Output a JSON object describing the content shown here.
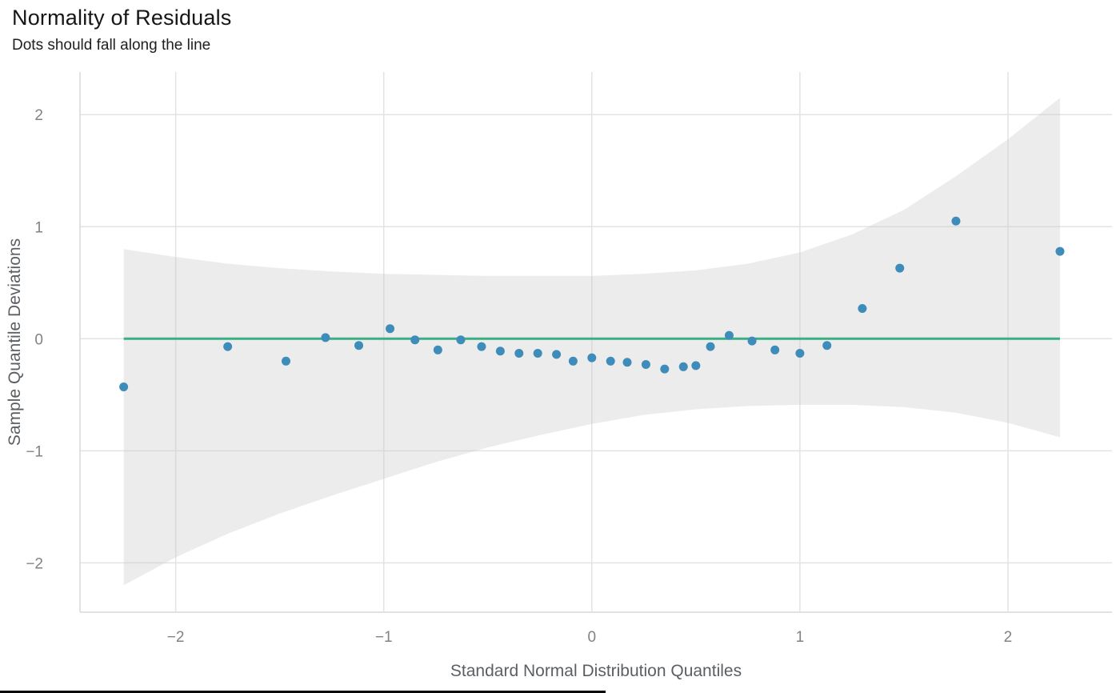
{
  "figure": {
    "title": "Normality of Residuals",
    "subtitle": "Dots should fall along the line"
  },
  "chart_data": {
    "type": "scatter",
    "title": "Normality of Residuals",
    "subtitle": "Dots should fall along the line",
    "xlabel": "Standard Normal Distribution Quantiles",
    "ylabel": "Sample Quantile Deviations",
    "xlim": [
      -2.46,
      2.5
    ],
    "ylim": [
      -2.44,
      2.38
    ],
    "xticks": [
      -2,
      -1,
      0,
      1,
      2
    ],
    "yticks": [
      -2,
      -1,
      0,
      1,
      2
    ],
    "grid": true,
    "legend": "none",
    "series": [
      {
        "name": "sample-quantile-deviations",
        "type": "scatter",
        "color": "#3d8cba",
        "x": [
          -2.25,
          -1.75,
          -1.47,
          -1.28,
          -1.12,
          -0.97,
          -0.85,
          -0.74,
          -0.63,
          -0.53,
          -0.44,
          -0.35,
          -0.26,
          -0.17,
          -0.09,
          0.0,
          0.09,
          0.17,
          0.26,
          0.35,
          0.44,
          0.5,
          0.57,
          0.66,
          0.77,
          0.88,
          1.0,
          1.13,
          1.3,
          1.48,
          1.75,
          2.25
        ],
        "y": [
          -0.43,
          -0.07,
          -0.2,
          0.01,
          -0.06,
          0.09,
          -0.01,
          -0.1,
          -0.01,
          -0.07,
          -0.11,
          -0.13,
          -0.13,
          -0.14,
          -0.2,
          -0.17,
          -0.2,
          -0.21,
          -0.23,
          -0.27,
          -0.25,
          -0.24,
          -0.07,
          0.03,
          -0.02,
          -0.1,
          -0.13,
          -0.06,
          0.27,
          0.63,
          1.05,
          0.78
        ]
      }
    ],
    "reference_line": {
      "y": 0,
      "x_start": -2.25,
      "x_end": 2.25,
      "color": "#3aaf85",
      "width": 3
    },
    "confidence_band": {
      "fill": "#c9c9c9",
      "opacity": 0.35,
      "x": [
        -2.25,
        -2.0,
        -1.75,
        -1.5,
        -1.25,
        -1.0,
        -0.75,
        -0.5,
        -0.25,
        0.0,
        0.25,
        0.5,
        0.75,
        1.0,
        1.25,
        1.5,
        1.75,
        2.0,
        2.25
      ],
      "upper": [
        0.8,
        0.73,
        0.67,
        0.63,
        0.6,
        0.58,
        0.57,
        0.56,
        0.56,
        0.56,
        0.58,
        0.61,
        0.67,
        0.77,
        0.93,
        1.15,
        1.45,
        1.78,
        2.15
      ],
      "lower": [
        -2.2,
        -1.95,
        -1.74,
        -1.56,
        -1.4,
        -1.25,
        -1.1,
        -0.97,
        -0.86,
        -0.76,
        -0.68,
        -0.63,
        -0.6,
        -0.59,
        -0.59,
        -0.61,
        -0.66,
        -0.75,
        -0.88
      ]
    }
  },
  "theme": {
    "background": "#ffffff",
    "grid_color": "#e3e3e3",
    "axis_line_color": "#d9d9d9",
    "tick_label_color": "#7f8388",
    "axis_title_color": "#5b5f63",
    "title_color": "#161616",
    "point_color": "#3d8cba",
    "line_color": "#3aaf85",
    "band_color": "#c9c9c9"
  }
}
